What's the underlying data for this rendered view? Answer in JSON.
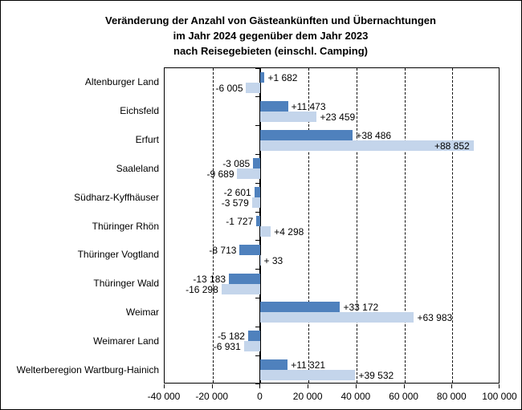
{
  "title": {
    "line1": "Veränderung der Anzahl von Gästeankünften und Übernachtungen",
    "line2": "im Jahr 2024 gegenüber dem Jahr 2023",
    "line3": "nach Reisegebieten (einschl. Camping)"
  },
  "colors": {
    "dark_blue_bar": "#4f81bd",
    "light_blue_bar": "#c4d5eb",
    "axis": "#000000"
  },
  "chart_data": {
    "type": "bar",
    "orientation": "horizontal",
    "title": "Veränderung der Anzahl von Gästeankünften und Übernachtungen im Jahr 2024 gegenüber dem Jahr 2023 nach Reisegebieten (einschl. Camping)",
    "legend": "none",
    "grid": "dashed vertical lines every 20 000, solid line at 0",
    "categories": [
      "Altenburger Land",
      "Eichsfeld",
      "Erfurt",
      "Saaleland",
      "Südharz-Kyffhäuser",
      "Thüringer Rhön",
      "Thüringer Vogtland",
      "Thüringer Wald",
      "Weimar",
      "Weimarer Land",
      "Welterberegion Wartburg-Hainich"
    ],
    "series": [
      {
        "name": "series-dark-blue",
        "color": "#4f81bd",
        "values": [
          1682,
          11473,
          38486,
          -3085,
          -2601,
          -1727,
          -8713,
          -13183,
          33172,
          -5182,
          11321
        ],
        "labels": [
          "+1 682",
          "+11 473",
          "+38 486",
          "-3 085",
          "-2 601",
          "-1 727",
          "-8 713",
          "-13 183",
          "+33 172",
          "-5 182",
          "+11 321"
        ]
      },
      {
        "name": "series-light-blue",
        "color": "#c4d5eb",
        "values": [
          -6005,
          23459,
          88852,
          -9689,
          -3579,
          4298,
          33,
          -16298,
          63983,
          -6931,
          39532
        ],
        "labels": [
          "-6 005",
          "+23 459",
          "+88 852",
          "-9 689",
          "-3 579",
          "+4 298",
          "+ 33",
          "-16 298",
          "+63 983",
          "-6 931",
          "+39 532"
        ]
      }
    ],
    "xlim": [
      -40000,
      100000
    ],
    "x_ticks": [
      -40000,
      -20000,
      0,
      20000,
      40000,
      60000,
      80000,
      100000
    ],
    "x_tick_labels": [
      "-40 000",
      "-20 000",
      "0",
      "20 000",
      "40 000",
      "60 000",
      "80 000",
      "100 000"
    ],
    "gridlines_dashed": [
      -20000,
      20000,
      40000,
      60000,
      80000
    ]
  }
}
